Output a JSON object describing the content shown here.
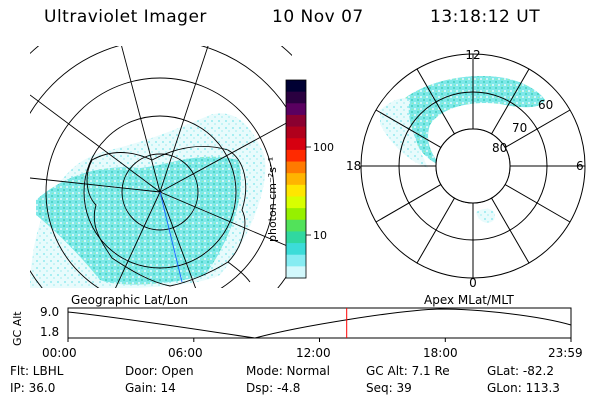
{
  "header": {
    "instrument": "Ultraviolet Imager",
    "date": "10 Nov 07",
    "time": "13:18:12 UT"
  },
  "left_panel": {
    "caption": "Geographic Lat/Lon"
  },
  "right_panel": {
    "caption": "Apex MLat/MLT",
    "mlt_labels": [
      "12",
      "18",
      "6",
      "0"
    ],
    "mlat_labels": [
      "60",
      "70",
      "80"
    ]
  },
  "colorbar": {
    "unit_label": "photon cm⁻²s⁻¹",
    "ticks": [
      "100",
      "10"
    ],
    "colors": [
      "#000033",
      "#2a0040",
      "#5a0060",
      "#8a0030",
      "#b0001c",
      "#d60010",
      "#ff2a00",
      "#ff7a00",
      "#ffb400",
      "#ffe600",
      "#d8ff00",
      "#96f000",
      "#52e25a",
      "#30d8a0",
      "#3cdcd8",
      "#86ecf2",
      "#d2f8fc"
    ]
  },
  "timeline": {
    "axis_label": "GC Alt",
    "y_ticks": [
      "9.0",
      "1.8"
    ],
    "x_ticks": [
      "00:00",
      "06:00",
      "12:00",
      "18:00",
      "23:59"
    ],
    "marker_time_hours": 13.3
  },
  "info": {
    "flt": "Flt: LBHL",
    "ip": "IP: 36.0",
    "door": "Door: Open",
    "gain": "Gain: 14",
    "mode": "Mode: Normal",
    "dsp": "Dsp:    -4.8",
    "gc_alt": "GC Alt: 7.1 Re",
    "seq": "Seq: 39",
    "glat": "GLat: -82.2",
    "glon": "GLon: 113.3"
  }
}
